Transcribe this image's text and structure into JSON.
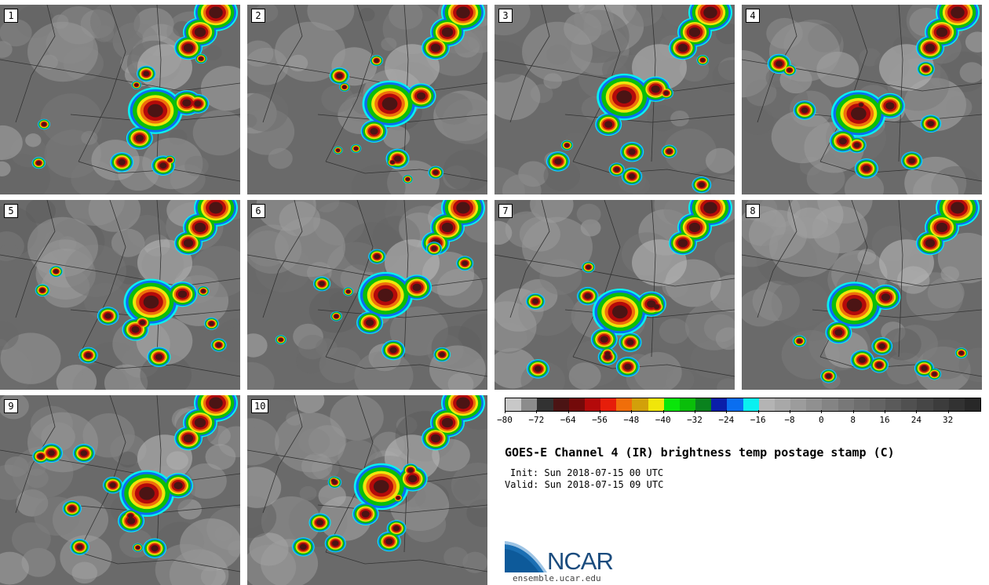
{
  "stamps": [
    {
      "label": "1"
    },
    {
      "label": "2"
    },
    {
      "label": "3"
    },
    {
      "label": "4"
    },
    {
      "label": "5"
    },
    {
      "label": "6"
    },
    {
      "label": "7"
    },
    {
      "label": "8"
    },
    {
      "label": "9"
    },
    {
      "label": "10"
    }
  ],
  "colorbar": {
    "colors": [
      "#c8c8c8",
      "#8c8c8c",
      "#323232",
      "#4b1414",
      "#730a0a",
      "#b40a0a",
      "#e61e0a",
      "#f06e0a",
      "#d2a00a",
      "#f0e60a",
      "#0ae60a",
      "#0abe0a",
      "#0a821e",
      "#0a1eaa",
      "#0a6ef0",
      "#0af0f0",
      "#b4b4b4",
      "#a8a8a8",
      "#9c9c9c",
      "#909090",
      "#848484",
      "#787878",
      "#6e6e6e",
      "#646464",
      "#5a5a5a",
      "#505050",
      "#464646",
      "#3c3c3c",
      "#323232",
      "#282828"
    ],
    "min": -80,
    "max": 40,
    "tick_values": [
      -80,
      -72,
      -64,
      -56,
      -48,
      -40,
      -32,
      -24,
      -16,
      -8,
      0,
      8,
      16,
      24,
      32
    ],
    "tick_labels": [
      "−80",
      "−72",
      "−64",
      "−56",
      "−48",
      "−40",
      "−32",
      "−24",
      "−16",
      "−8",
      "0",
      "8",
      "16",
      "24",
      "32"
    ]
  },
  "title": "GOES-E Channel 4 (IR) brightness temp postage stamp (C)",
  "init_text": "Init: Sun 2018-07-15 00 UTC",
  "valid_text": "Valid: Sun 2018-07-15 09 UTC",
  "logo": {
    "name": "NCAR",
    "url": "ensemble.ucar.edu"
  }
}
